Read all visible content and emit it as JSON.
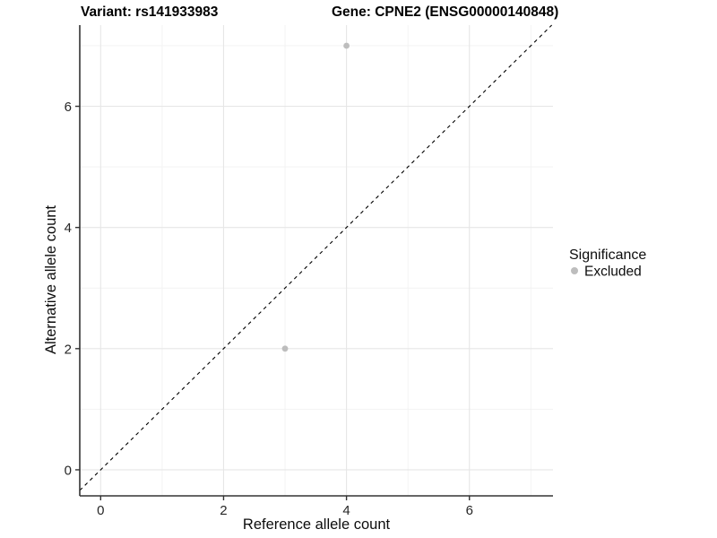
{
  "chart_data": {
    "type": "scatter",
    "title_left": "Variant: rs141933983",
    "title_right": "Gene: CPNE2 (ENSG00000140848)",
    "xlabel": "Reference allele count",
    "ylabel": "Alternative allele count",
    "xlim": [
      -0.34,
      7.36
    ],
    "ylim": [
      -0.43,
      7.34
    ],
    "x_major_ticks": [
      0,
      2,
      4,
      6
    ],
    "y_major_ticks": [
      0,
      2,
      4,
      6
    ],
    "x_minor_ticks": [
      1,
      3,
      5,
      7
    ],
    "y_minor_ticks": [
      1,
      3,
      5,
      7
    ],
    "grid": true,
    "reference_line": {
      "slope": 1,
      "intercept": 0,
      "style": "dashed",
      "color": "#000000"
    },
    "series": [
      {
        "name": "Excluded",
        "color": "#bdbdbd",
        "points": [
          {
            "x": 4,
            "y": 7
          },
          {
            "x": 3,
            "y": 2
          }
        ]
      }
    ],
    "legend": {
      "title": "Significance",
      "position": "right",
      "entries": [
        {
          "label": "Excluded",
          "color": "#bdbdbd"
        }
      ]
    },
    "colors": {
      "background": "#ffffff",
      "major_grid": "#e6e6e6",
      "minor_grid": "#f2f2f2",
      "axis_line": "#333333",
      "tick_label": "#262626",
      "point": "#bdbdbd"
    }
  }
}
